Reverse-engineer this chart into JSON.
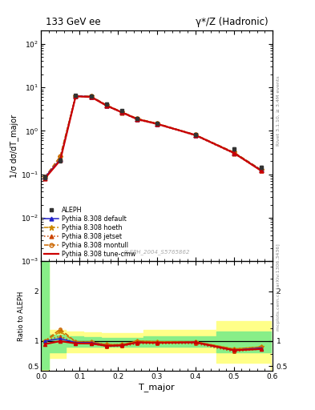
{
  "title_left": "133 GeV ee",
  "title_right": "γ*/Z (Hadronic)",
  "ylabel_main": "1/σ dσ/dT_major",
  "ylabel_ratio": "Ratio to ALEPH",
  "xlabel": "T_major",
  "right_label_top": "Rivet 3.1.10, ≥ 3.4M events",
  "right_label_bot": "mcplots.cern.ch [arXiv:1306.3436]",
  "ref_label": "ALEPH_2004_S5765862",
  "x_data": [
    0.01,
    0.05,
    0.09,
    0.13,
    0.17,
    0.21,
    0.25,
    0.3,
    0.4,
    0.5,
    0.57
  ],
  "aleph_y": [
    0.085,
    0.21,
    6.5,
    6.3,
    4.2,
    2.9,
    1.9,
    1.5,
    0.82,
    0.38,
    0.145
  ],
  "aleph_yerr": [
    0.008,
    0.02,
    0.3,
    0.3,
    0.2,
    0.15,
    0.1,
    0.08,
    0.05,
    0.03,
    0.015
  ],
  "pythia_x": [
    0.01,
    0.05,
    0.09,
    0.13,
    0.17,
    0.21,
    0.25,
    0.3,
    0.4,
    0.5,
    0.57
  ],
  "default_y": [
    0.085,
    0.22,
    6.3,
    6.1,
    3.8,
    2.65,
    1.85,
    1.45,
    0.8,
    0.31,
    0.125
  ],
  "hoeth_y": [
    0.085,
    0.25,
    6.4,
    6.2,
    3.9,
    2.7,
    1.9,
    1.48,
    0.81,
    0.32,
    0.128
  ],
  "jetset_y": [
    0.085,
    0.23,
    6.2,
    6.0,
    3.75,
    2.6,
    1.8,
    1.42,
    0.78,
    0.3,
    0.122
  ],
  "montull_y": [
    0.085,
    0.26,
    6.4,
    6.2,
    3.9,
    2.7,
    1.9,
    1.48,
    0.81,
    0.32,
    0.128
  ],
  "tunecmw_y": [
    0.08,
    0.21,
    6.2,
    6.0,
    3.8,
    2.65,
    1.85,
    1.45,
    0.8,
    0.31,
    0.122
  ],
  "ratio_default": [
    1.0,
    1.05,
    0.97,
    0.97,
    0.905,
    0.914,
    0.974,
    0.967,
    0.976,
    0.816,
    0.862
  ],
  "ratio_hoeth": [
    1.0,
    1.19,
    0.985,
    0.984,
    0.929,
    0.931,
    1.0,
    0.987,
    0.988,
    0.842,
    0.883
  ],
  "ratio_jetset": [
    1.0,
    1.1,
    0.954,
    0.952,
    0.893,
    0.897,
    0.947,
    0.947,
    0.951,
    0.789,
    0.841
  ],
  "ratio_montull": [
    1.0,
    1.24,
    0.985,
    0.984,
    0.929,
    0.931,
    1.0,
    0.987,
    0.988,
    0.842,
    0.883
  ],
  "ratio_tunecmw": [
    0.94,
    1.0,
    0.954,
    0.952,
    0.905,
    0.914,
    0.974,
    0.967,
    0.976,
    0.816,
    0.841
  ],
  "green_band_x": [
    0.0,
    0.02,
    0.065,
    0.11,
    0.155,
    0.21,
    0.265,
    0.455,
    0.595
  ],
  "green_band_lo": [
    0.43,
    0.78,
    0.88,
    0.88,
    0.88,
    0.88,
    0.88,
    0.78,
    0.78
  ],
  "green_band_hi": [
    2.6,
    1.13,
    1.1,
    1.08,
    1.07,
    1.07,
    1.1,
    1.2,
    1.2
  ],
  "yellow_band_x": [
    0.0,
    0.02,
    0.065,
    0.11,
    0.155,
    0.21,
    0.265,
    0.455,
    0.595
  ],
  "yellow_band_lo": [
    0.37,
    0.67,
    0.77,
    0.77,
    0.78,
    0.78,
    0.78,
    0.57,
    0.42
  ],
  "yellow_band_hi": [
    2.6,
    1.23,
    1.2,
    1.18,
    1.16,
    1.16,
    1.23,
    1.4,
    1.4
  ],
  "colors": {
    "aleph": "#333333",
    "default": "#2222cc",
    "hoeth": "#cc8800",
    "jetset": "#cc4400",
    "montull": "#cc6600",
    "tunecmw": "#cc0000"
  },
  "xlim": [
    0.0,
    0.6
  ],
  "ylim_main": [
    0.001,
    200
  ],
  "ylim_ratio": [
    0.4,
    2.6
  ],
  "ratio_yticks": [
    0.5,
    1.0,
    2.0
  ],
  "ratio_yticklabels": [
    "0.5",
    "1",
    "2"
  ]
}
